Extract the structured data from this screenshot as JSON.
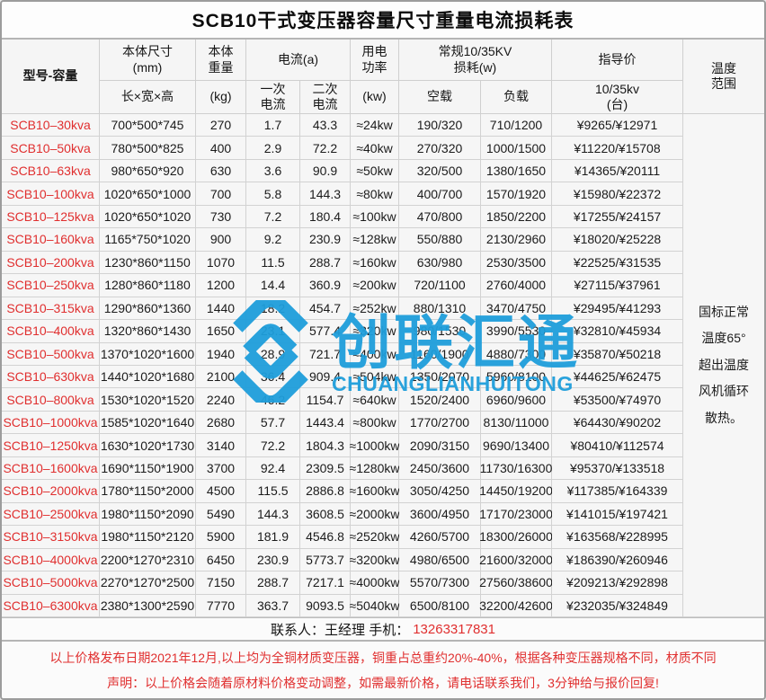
{
  "title": "SCB10干式变压器容量尺寸重量电流损耗表",
  "header": {
    "model": "型号-容量",
    "size": "本体尺寸\n(mm)",
    "size_sub": "长×宽×高",
    "weight": "本体\n重量",
    "weight_sub": "(kg)",
    "current": "电流(a)",
    "current_primary": "一次\n电流",
    "current_secondary": "二次\n电流",
    "power": "用电\n功率",
    "power_sub": "(kw)",
    "loss": "常规10/35KV\n损耗(w)",
    "loss_noload": "空载",
    "loss_load": "负载",
    "price": "指导价",
    "price_sub": "10/35kv\n(台)",
    "temp": "温度\n范围"
  },
  "rows": [
    {
      "model": "SCB10–30kva",
      "size": "700*500*745",
      "weight": "270",
      "i1": "1.7",
      "i2": "43.3",
      "power": "≈24kw",
      "noload": "190/320",
      "load": "710/1200",
      "price": "¥9265/¥12971"
    },
    {
      "model": "SCB10–50kva",
      "size": "780*500*825",
      "weight": "400",
      "i1": "2.9",
      "i2": "72.2",
      "power": "≈40kw",
      "noload": "270/320",
      "load": "1000/1500",
      "price": "¥11220/¥15708"
    },
    {
      "model": "SCB10–63kva",
      "size": "980*650*920",
      "weight": "630",
      "i1": "3.6",
      "i2": "90.9",
      "power": "≈50kw",
      "noload": "320/500",
      "load": "1380/1650",
      "price": "¥14365/¥20111"
    },
    {
      "model": "SCB10–100kva",
      "size": "1020*650*1000",
      "weight": "700",
      "i1": "5.8",
      "i2": "144.3",
      "power": "≈80kw",
      "noload": "400/700",
      "load": "1570/1920",
      "price": "¥15980/¥22372"
    },
    {
      "model": "SCB10–125kva",
      "size": "1020*650*1020",
      "weight": "730",
      "i1": "7.2",
      "i2": "180.4",
      "power": "≈100kw",
      "noload": "470/800",
      "load": "1850/2200",
      "price": "¥17255/¥24157"
    },
    {
      "model": "SCB10–160kva",
      "size": "1165*750*1020",
      "weight": "900",
      "i1": "9.2",
      "i2": "230.9",
      "power": "≈128kw",
      "noload": "550/880",
      "load": "2130/2960",
      "price": "¥18020/¥25228"
    },
    {
      "model": "SCB10–200kva",
      "size": "1230*860*1150",
      "weight": "1070",
      "i1": "11.5",
      "i2": "288.7",
      "power": "≈160kw",
      "noload": "630/980",
      "load": "2530/3500",
      "price": "¥22525/¥31535"
    },
    {
      "model": "SCB10–250kva",
      "size": "1280*860*1180",
      "weight": "1200",
      "i1": "14.4",
      "i2": "360.9",
      "power": "≈200kw",
      "noload": "720/1100",
      "load": "2760/4000",
      "price": "¥27115/¥37961"
    },
    {
      "model": "SCB10–315kva",
      "size": "1290*860*1360",
      "weight": "1440",
      "i1": "18.2",
      "i2": "454.7",
      "power": "≈252kw",
      "noload": "880/1310",
      "load": "3470/4750",
      "price": "¥29495/¥41293"
    },
    {
      "model": "SCB10–400kva",
      "size": "1320*860*1430",
      "weight": "1650",
      "i1": "23.1",
      "i2": "577.4",
      "power": "≈320kw",
      "noload": "980/1530",
      "load": "3990/5530",
      "price": "¥32810/¥45934"
    },
    {
      "model": "SCB10–500kva",
      "size": "1370*1020*1600",
      "weight": "1940",
      "i1": "28.9",
      "i2": "721.7",
      "power": "≈400kw",
      "noload": "1160/1900",
      "load": "4880/7300",
      "price": "¥35870/¥50218"
    },
    {
      "model": "SCB10–630kva",
      "size": "1440*1020*1680",
      "weight": "2100",
      "i1": "36.4",
      "i2": "909.4",
      "power": "≈504kw",
      "noload": "1350/2070",
      "load": "5960/8100",
      "price": "¥44625/¥62475"
    },
    {
      "model": "SCB10–800kva",
      "size": "1530*1020*1520",
      "weight": "2240",
      "i1": "46.2",
      "i2": "1154.7",
      "power": "≈640kw",
      "noload": "1520/2400",
      "load": "6960/9600",
      "price": "¥53500/¥74970"
    },
    {
      "model": "SCB10–1000kva",
      "size": "1585*1020*1640",
      "weight": "2680",
      "i1": "57.7",
      "i2": "1443.4",
      "power": "≈800kw",
      "noload": "1770/2700",
      "load": "8130/11000",
      "price": "¥64430/¥90202"
    },
    {
      "model": "SCB10–1250kva",
      "size": "1630*1020*1730",
      "weight": "3140",
      "i1": "72.2",
      "i2": "1804.3",
      "power": "≈1000kw",
      "noload": "2090/3150",
      "load": "9690/13400",
      "price": "¥80410/¥112574"
    },
    {
      "model": "SCB10–1600kva",
      "size": "1690*1150*1900",
      "weight": "3700",
      "i1": "92.4",
      "i2": "2309.5",
      "power": "≈1280kw",
      "noload": "2450/3600",
      "load": "11730/16300",
      "price": "¥95370/¥133518"
    },
    {
      "model": "SCB10–2000kva",
      "size": "1780*1150*2000",
      "weight": "4500",
      "i1": "115.5",
      "i2": "2886.8",
      "power": "≈1600kw",
      "noload": "3050/4250",
      "load": "14450/19200",
      "price": "¥117385/¥164339"
    },
    {
      "model": "SCB10–2500kva",
      "size": "1980*1150*2090",
      "weight": "5490",
      "i1": "144.3",
      "i2": "3608.5",
      "power": "≈2000kw",
      "noload": "3600/4950",
      "load": "17170/23000",
      "price": "¥141015/¥197421"
    },
    {
      "model": "SCB10–3150kva",
      "size": "1980*1150*2120",
      "weight": "5900",
      "i1": "181.9",
      "i2": "4546.8",
      "power": "≈2520kw",
      "noload": "4260/5700",
      "load": "18300/26000",
      "price": "¥163568/¥228995"
    },
    {
      "model": "SCB10–4000kva",
      "size": "2200*1270*2310",
      "weight": "6450",
      "i1": "230.9",
      "i2": "5773.7",
      "power": "≈3200kw",
      "noload": "4980/6500",
      "load": "21600/32000",
      "price": "¥186390/¥260946"
    },
    {
      "model": "SCB10–5000kva",
      "size": "2270*1270*2500",
      "weight": "7150",
      "i1": "288.7",
      "i2": "7217.1",
      "power": "≈4000kw",
      "noload": "5570/7300",
      "load": "27560/38600",
      "price": "¥209213/¥292898"
    },
    {
      "model": "SCB10–6300kva",
      "size": "2380*1300*2590",
      "weight": "7770",
      "i1": "363.7",
      "i2": "9093.5",
      "power": "≈5040kw",
      "noload": "6500/8100",
      "load": "32200/42600",
      "price": "¥232035/¥324849"
    }
  ],
  "temperature_note": "国标正常\n温度65°\n超出温度\n风机循环\n散热。",
  "logo": {
    "name_cn": "创联汇通",
    "name_en": "CHUANGLIANHUITONG",
    "color": "#1f9edb"
  },
  "contact": {
    "label": "联系人：王经理  手机：",
    "phone": "13263317831"
  },
  "notice": {
    "line1": "以上价格发布日期2021年12月,以上均为全铜材质变压器，铜重占总重约20%-40%，根据各种变压器规格不同，材质不同",
    "line2": "声明：以上价格会随着原材料价格变动调整，如需最新价格，请电话联系我们，3分钟给与报价回复!"
  },
  "colors": {
    "accent_red": "#e02f2f",
    "logo_blue": "#1f9edb",
    "cell_bg": "#f6f6f6",
    "grid_line": "#d2d2d2"
  }
}
